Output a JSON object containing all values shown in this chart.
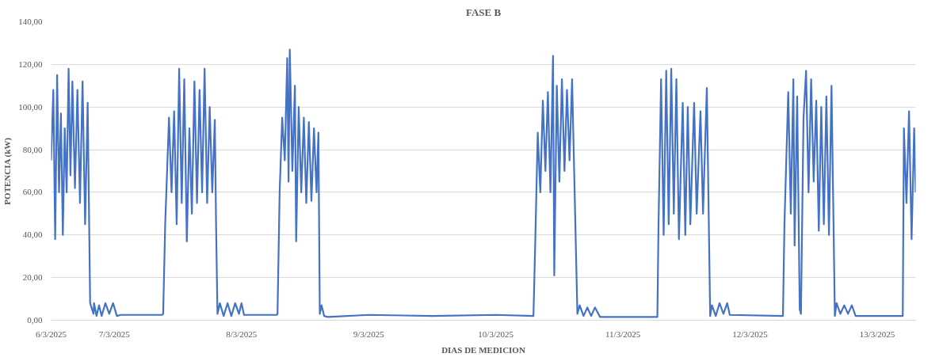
{
  "chart_data": {
    "type": "line",
    "title": "FASE B",
    "xlabel": "DIAS DE MEDICION",
    "ylabel": "POTENCIA (kW)",
    "xlim": [
      "2025-03-06T12:04",
      "2025-03-13T07:15"
    ],
    "xticks": [
      {
        "value": "2025-03-06T12:04",
        "label": "6/3/2025"
      },
      {
        "value": "2025-03-07",
        "label": "7/3/2025"
      },
      {
        "value": "2025-03-08",
        "label": "8/3/2025"
      },
      {
        "value": "2025-03-09",
        "label": "9/3/2025"
      },
      {
        "value": "2025-03-10",
        "label": "10/3/2025"
      },
      {
        "value": "2025-03-11",
        "label": "11/3/2025"
      },
      {
        "value": "2025-03-12",
        "label": "12/3/2025"
      },
      {
        "value": "2025-03-13",
        "label": "13/3/2025"
      }
    ],
    "ylim": [
      0,
      140
    ],
    "yticks": [
      {
        "value": 0,
        "label": "0,00"
      },
      {
        "value": 20,
        "label": "20,00"
      },
      {
        "value": 40,
        "label": "40,00"
      },
      {
        "value": 60,
        "label": "60,00"
      },
      {
        "value": 80,
        "label": "80,00"
      },
      {
        "value": 100,
        "label": "100,00"
      },
      {
        "value": 120,
        "label": "120,00"
      },
      {
        "value": 140,
        "label": "140,00"
      }
    ],
    "grid": "y",
    "line_style": "solid",
    "series": [
      {
        "color": "#4472c4",
        "x": [
          "2025-03-06T12:04",
          "2025-03-06T12:29",
          "2025-03-06T12:50",
          "2025-03-06T13:12",
          "2025-03-06T13:34",
          "2025-03-06T13:55",
          "2025-03-06T14:17",
          "2025-03-06T14:38",
          "2025-03-06T15:00",
          "2025-03-06T15:22",
          "2025-03-06T15:43",
          "2025-03-06T16:05",
          "2025-03-06T16:34",
          "2025-03-06T17:02",
          "2025-03-06T17:31",
          "2025-03-06T18:00",
          "2025-03-06T18:29",
          "2025-03-06T18:58",
          "2025-03-06T19:26",
          "2025-03-06T20:04",
          "2025-03-06T20:10",
          "2025-03-06T20:38",
          "2025-03-06T21:07",
          "2025-03-06T21:36",
          "2025-03-06T22:19",
          "2025-03-06T23:02",
          "2025-03-06T23:46",
          "2025-03-07T00:29",
          "2025-03-07T01:12",
          "2025-03-07T09:00",
          "2025-03-07T09:13",
          "2025-03-07T09:36",
          "2025-03-07T10:19",
          "2025-03-07T10:48",
          "2025-03-07T11:17",
          "2025-03-07T11:46",
          "2025-03-07T12:14",
          "2025-03-07T12:43",
          "2025-03-07T13:12",
          "2025-03-07T13:41",
          "2025-03-07T14:10",
          "2025-03-07T14:38",
          "2025-03-07T15:07",
          "2025-03-07T15:36",
          "2025-03-07T16:05",
          "2025-03-07T16:34",
          "2025-03-07T17:02",
          "2025-03-07T17:31",
          "2025-03-07T18:00",
          "2025-03-07T18:29",
          "2025-03-07T18:58",
          "2025-03-07T19:12",
          "2025-03-07T19:28",
          "2025-03-07T19:55",
          "2025-03-07T20:38",
          "2025-03-07T21:22",
          "2025-03-07T22:05",
          "2025-03-07T22:48",
          "2025-03-07T23:31",
          "2025-03-08T00:00",
          "2025-03-08T00:29",
          "2025-03-08T06:40",
          "2025-03-08T06:48",
          "2025-03-08T07:12",
          "2025-03-08T07:41",
          "2025-03-08T08:10",
          "2025-03-08T08:38",
          "2025-03-08T08:53",
          "2025-03-08T09:07",
          "2025-03-08T09:36",
          "2025-03-08T10:05",
          "2025-03-08T10:19",
          "2025-03-08T10:48",
          "2025-03-08T11:17",
          "2025-03-08T11:46",
          "2025-03-08T12:14",
          "2025-03-08T12:43",
          "2025-03-08T13:12",
          "2025-03-08T13:41",
          "2025-03-08T14:10",
          "2025-03-08T14:31",
          "2025-03-08T14:47",
          "2025-03-08T15:07",
          "2025-03-08T15:36",
          "2025-03-08T16:19",
          "2025-03-09T00:00",
          "2025-03-09T12:00",
          "2025-03-10T00:00",
          "2025-03-10T07:06",
          "2025-03-10T07:07",
          "2025-03-10T07:26",
          "2025-03-10T07:55",
          "2025-03-10T08:24",
          "2025-03-10T08:53",
          "2025-03-10T09:22",
          "2025-03-10T09:50",
          "2025-03-10T10:19",
          "2025-03-10T10:48",
          "2025-03-10T11:02",
          "2025-03-10T11:31",
          "2025-03-10T12:00",
          "2025-03-10T12:29",
          "2025-03-10T12:58",
          "2025-03-10T13:26",
          "2025-03-10T13:55",
          "2025-03-10T14:24",
          "2025-03-10T14:53",
          "2025-03-10T15:24",
          "2025-03-10T15:50",
          "2025-03-10T16:34",
          "2025-03-10T17:17",
          "2025-03-10T18:00",
          "2025-03-10T18:43",
          "2025-03-10T19:41",
          "2025-03-11T06:29",
          "2025-03-11T06:30",
          "2025-03-11T06:43",
          "2025-03-11T07:12",
          "2025-03-11T07:41",
          "2025-03-11T08:10",
          "2025-03-11T08:38",
          "2025-03-11T09:07",
          "2025-03-11T09:36",
          "2025-03-11T10:05",
          "2025-03-11T10:34",
          "2025-03-11T11:17",
          "2025-03-11T11:46",
          "2025-03-11T12:14",
          "2025-03-11T12:43",
          "2025-03-11T13:26",
          "2025-03-11T13:55",
          "2025-03-11T14:38",
          "2025-03-11T15:07",
          "2025-03-11T15:50",
          "2025-03-11T16:28",
          "2025-03-11T16:48",
          "2025-03-11T17:31",
          "2025-03-11T18:14",
          "2025-03-11T18:58",
          "2025-03-11T19:41",
          "2025-03-11T20:10",
          "2025-03-12T06:12",
          "2025-03-12T06:29",
          "2025-03-12T07:12",
          "2025-03-12T07:41",
          "2025-03-12T08:10",
          "2025-03-12T08:24",
          "2025-03-12T08:53",
          "2025-03-12T09:22",
          "2025-03-12T09:36",
          "2025-03-12T10:05",
          "2025-03-12T10:34",
          "2025-03-12T11:02",
          "2025-03-12T11:31",
          "2025-03-12T12:00",
          "2025-03-12T12:29",
          "2025-03-12T12:58",
          "2025-03-12T13:26",
          "2025-03-12T13:55",
          "2025-03-12T14:24",
          "2025-03-12T14:53",
          "2025-03-12T15:22",
          "2025-03-12T16:00",
          "2025-03-12T16:19",
          "2025-03-12T17:02",
          "2025-03-12T17:46",
          "2025-03-12T18:29",
          "2025-03-12T19:12",
          "2025-03-12T19:55",
          "2025-03-13T04:49",
          "2025-03-13T05:02",
          "2025-03-13T05:31",
          "2025-03-13T06:00",
          "2025-03-13T06:29",
          "2025-03-13T06:58",
          "2025-03-13T07:15"
        ],
        "values": [
          75,
          108,
          38,
          115,
          60,
          97,
          40,
          90,
          60,
          118,
          68,
          112,
          62,
          108,
          55,
          112,
          45,
          102,
          8,
          3,
          8,
          2,
          7,
          2,
          8,
          3,
          8,
          2,
          2.5,
          2.5,
          3,
          45,
          95,
          60,
          98,
          45,
          118,
          55,
          113,
          37,
          90,
          50,
          112,
          55,
          108,
          60,
          118,
          55,
          100,
          60,
          94,
          45,
          3,
          8,
          2,
          8,
          2,
          8,
          3,
          8,
          2.5,
          2.5,
          3,
          60,
          95,
          75,
          123,
          65,
          127,
          70,
          110,
          37,
          100,
          60,
          95,
          55,
          93,
          56,
          90,
          60,
          88,
          3,
          7,
          2,
          1.5,
          2.5,
          2,
          2.5,
          2,
          3,
          35,
          88,
          60,
          103,
          70,
          107,
          60,
          124,
          21,
          110,
          65,
          113,
          70,
          108,
          75,
          113,
          60,
          3,
          7,
          2,
          6,
          2,
          6,
          1.5,
          1.5,
          2,
          45,
          113,
          40,
          117,
          45,
          118,
          50,
          113,
          38,
          102,
          40,
          100,
          45,
          102,
          50,
          98,
          50,
          109,
          2,
          7,
          2,
          8,
          3,
          8,
          2.5,
          2,
          45,
          107,
          50,
          113,
          35,
          105,
          5,
          3,
          95,
          117,
          60,
          113,
          65,
          103,
          42,
          100,
          45,
          105,
          40,
          110,
          2,
          8,
          3,
          7,
          3,
          7,
          2,
          2,
          90,
          55,
          98,
          38,
          90,
          60
        ]
      }
    ]
  }
}
